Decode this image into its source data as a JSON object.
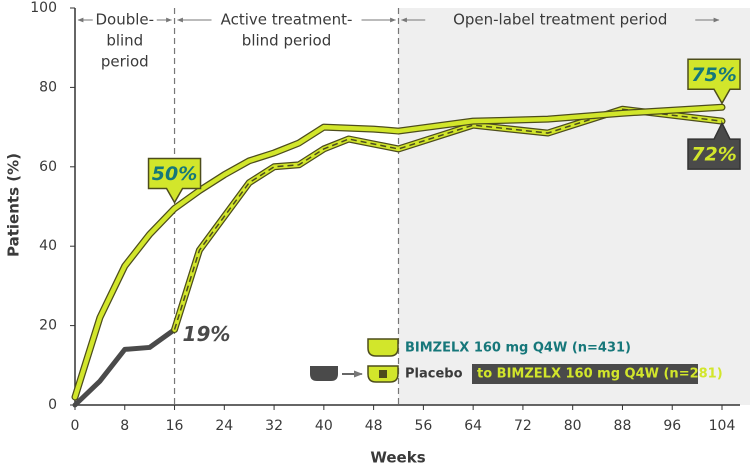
{
  "chart_data": {
    "type": "line",
    "xlabel": "Weeks",
    "ylabel": "Patients (%)",
    "xlim": [
      0,
      104
    ],
    "xticks": [
      0,
      8,
      16,
      24,
      32,
      40,
      48,
      56,
      64,
      72,
      80,
      88,
      96,
      104
    ],
    "ylim": [
      0,
      100
    ],
    "yticks": [
      0,
      20,
      40,
      60,
      80,
      100
    ],
    "period_boundaries": [
      16,
      52
    ],
    "shaded_from": 52,
    "periods": [
      {
        "from": 0,
        "to": 16,
        "label_lines": [
          "Double-",
          "blind",
          "period"
        ]
      },
      {
        "from": 16,
        "to": 52,
        "label_lines": [
          "Active treatment-",
          "blind period"
        ]
      },
      {
        "from": 52,
        "to": 104,
        "label_lines": [
          "Open-label treatment period"
        ]
      }
    ],
    "series": [
      {
        "name": "BIMZELX 160 mg Q4W (n=431)",
        "color": "#d2e62b",
        "style": "solid",
        "x": [
          0,
          4,
          8,
          12,
          16,
          20,
          24,
          28,
          32,
          36,
          40,
          48,
          52,
          64,
          76,
          88,
          104
        ],
        "values": [
          2,
          22,
          35,
          43,
          49.5,
          54,
          58,
          61.5,
          63.5,
          66,
          70,
          69.5,
          69,
          71.5,
          72,
          73.5,
          75
        ]
      },
      {
        "name": "Placebo",
        "color": "#4a4a4a",
        "style": "solid",
        "x": [
          0,
          4,
          8,
          12,
          16
        ],
        "values": [
          0,
          6,
          14,
          14.5,
          19
        ]
      },
      {
        "name": "to BIMZELX 160 mg Q4W (n=281)",
        "color": "#d2e62b",
        "style": "dashed",
        "x": [
          16,
          20,
          28,
          32,
          36,
          40,
          44,
          52,
          64,
          76,
          88,
          104
        ],
        "values": [
          19,
          39,
          56,
          60,
          60.5,
          64.5,
          67,
          64.5,
          70.5,
          68.5,
          74.5,
          71.5
        ]
      }
    ],
    "callouts": [
      {
        "x": 16,
        "value": 50,
        "label": "50%",
        "style": "light"
      },
      {
        "x": 16,
        "value": 19,
        "label": "19%",
        "style": "plain"
      },
      {
        "x": 104,
        "value": 75,
        "label": "75%",
        "style": "light"
      },
      {
        "x": 104,
        "value": 72,
        "label": "72%",
        "style": "dark"
      }
    ]
  }
}
